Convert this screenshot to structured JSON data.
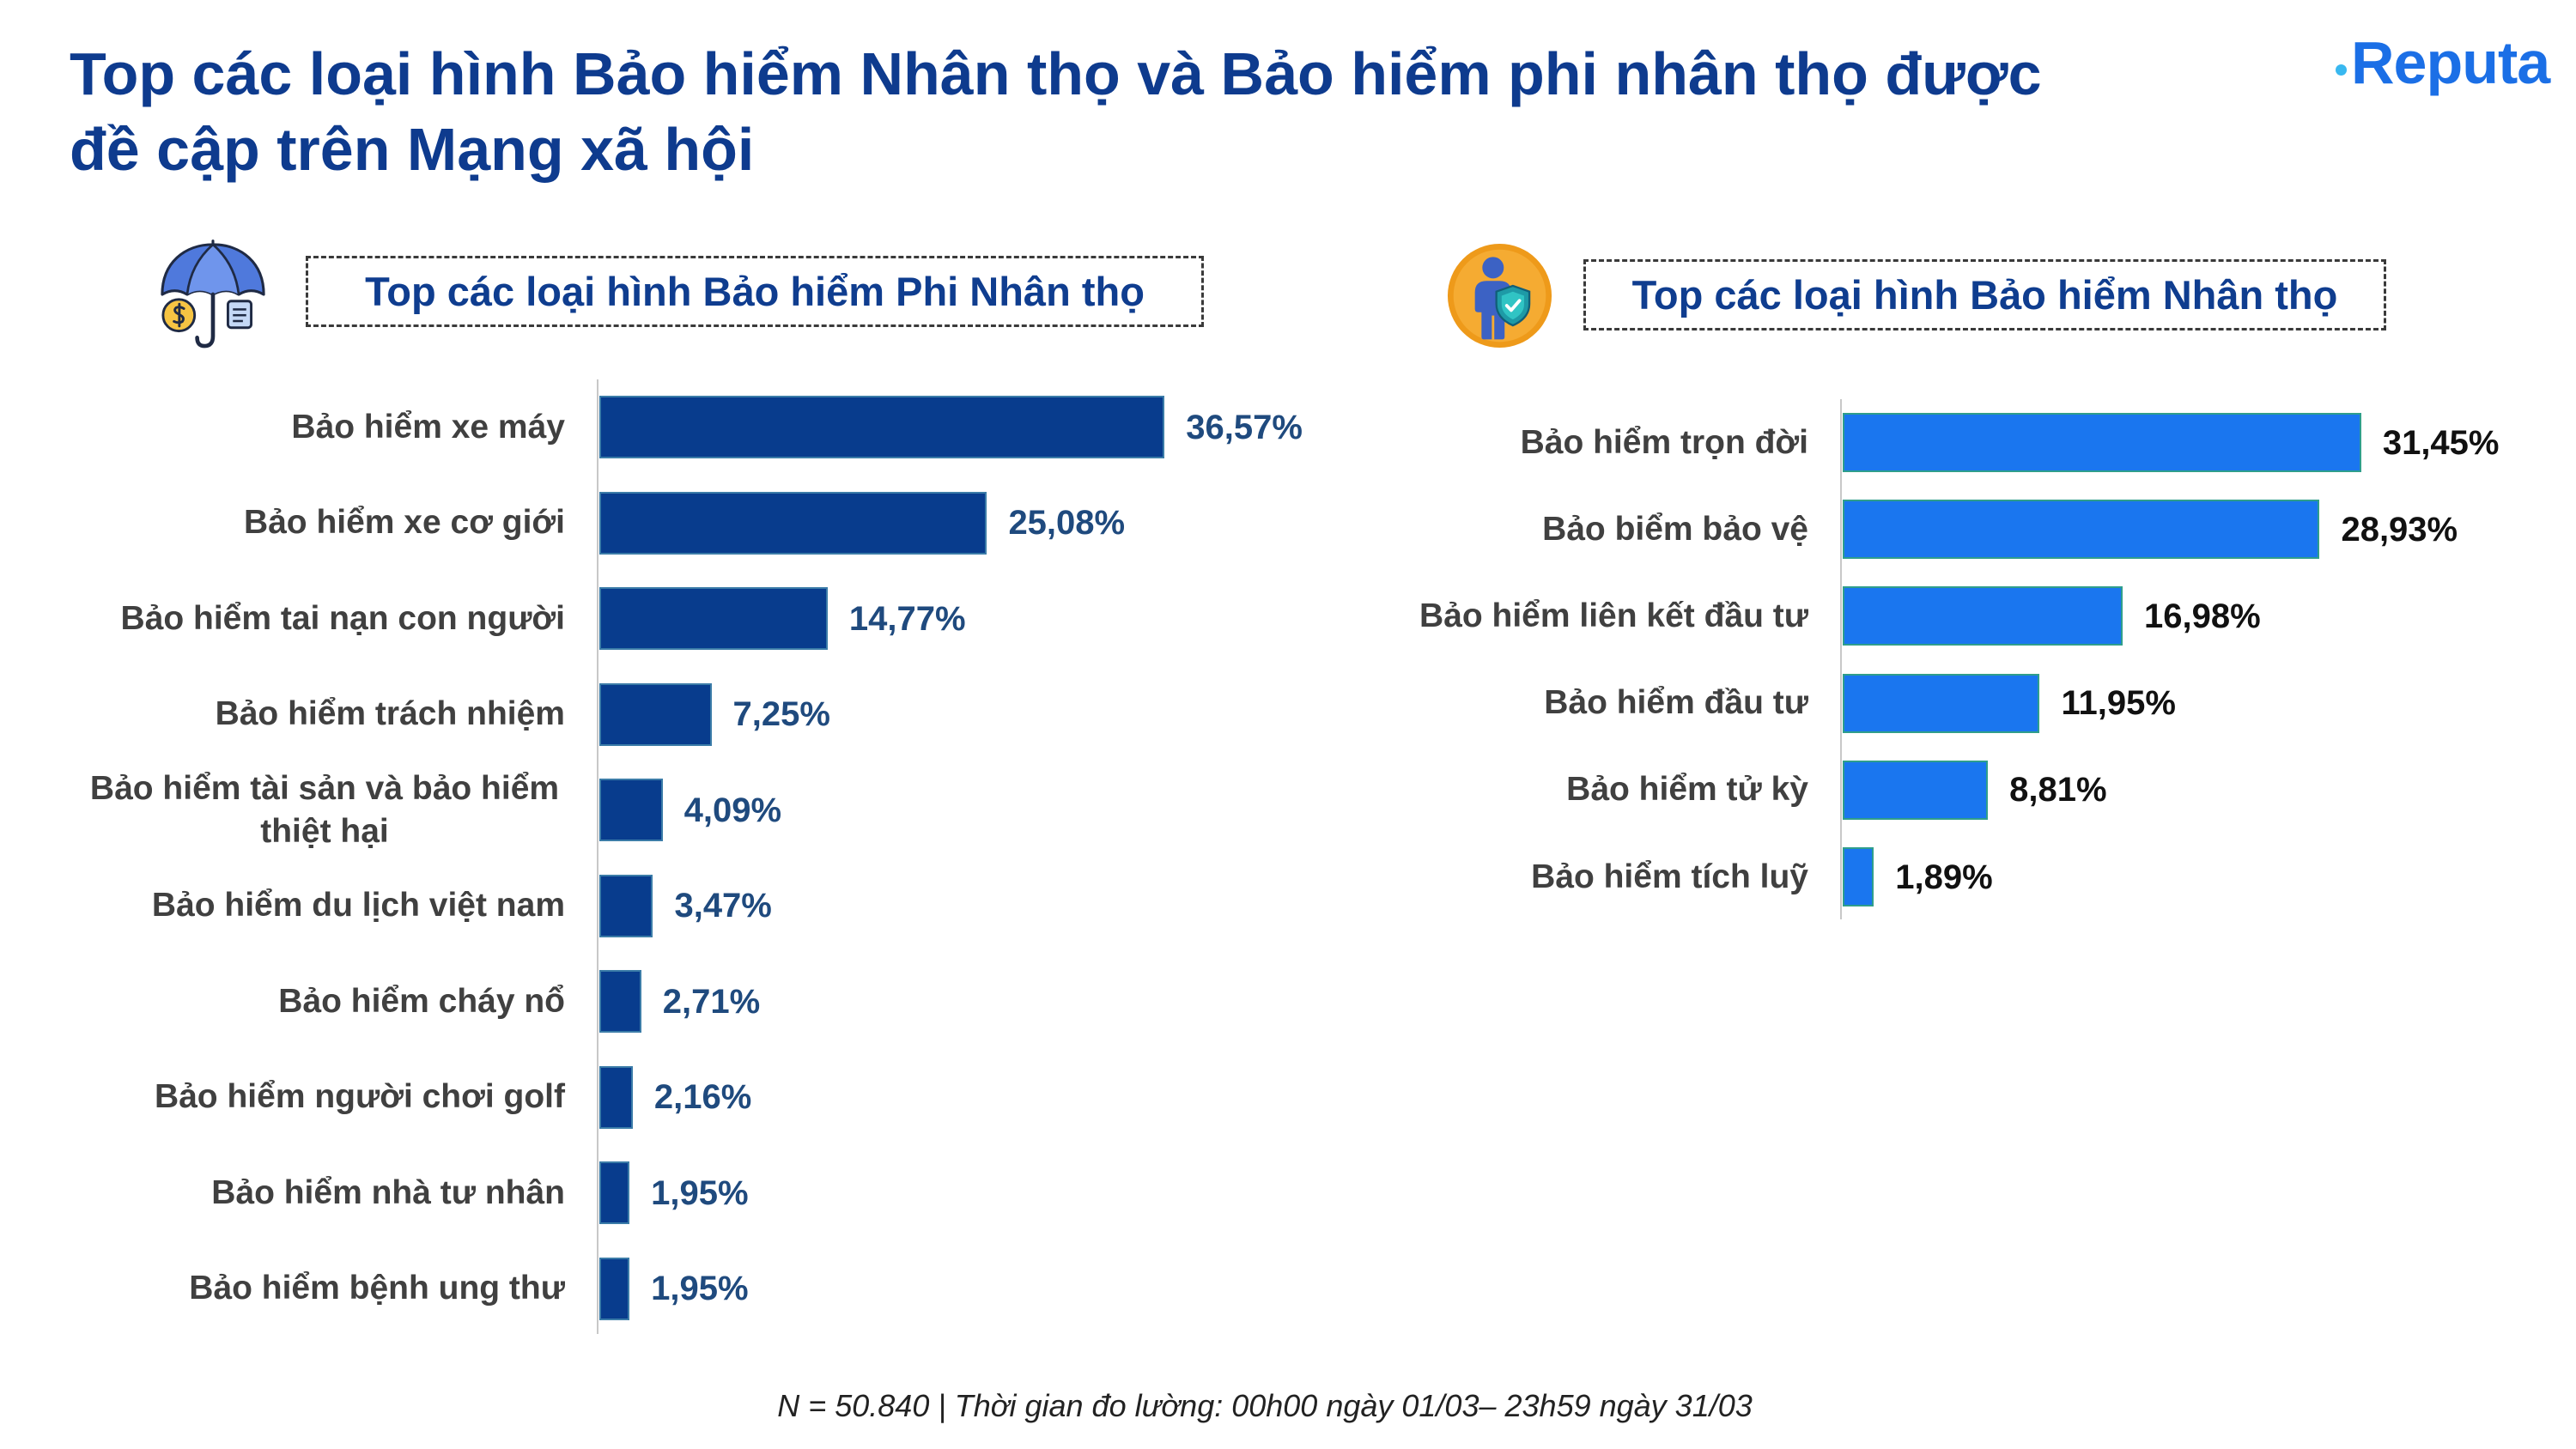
{
  "title": {
    "line1": "Top các loại hình Bảo hiểm Nhân thọ và Bảo hiểm phi nhân thọ được",
    "line2": "đề cập trên Mạng xã hội"
  },
  "logo": {
    "text": "Reputa",
    "color": "#1b6fe6"
  },
  "icons": {
    "left": "umbrella-money-icon",
    "right": "person-shield-icon"
  },
  "chart_data": [
    {
      "type": "bar",
      "orientation": "horizontal",
      "title": "Top các loại hình Bảo hiểm Phi Nhân thọ",
      "categories": [
        "Bảo hiểm xe máy",
        "Bảo hiểm xe cơ giới",
        "Bảo hiểm tai nạn con người",
        "Bảo hiểm trách nhiệm",
        "Bảo hiểm tài sản và bảo hiểm thiệt hại",
        "Bảo hiểm du lịch việt nam",
        "Bảo hiểm cháy nổ",
        "Bảo hiểm người chơi golf",
        "Bảo hiểm nhà tư nhân",
        "Bảo hiểm bệnh ung thư"
      ],
      "values": [
        36.57,
        25.08,
        14.77,
        7.25,
        4.09,
        3.47,
        2.71,
        2.16,
        1.95,
        1.95
      ],
      "value_labels": [
        "36,57%",
        "25,08%",
        "14,77%",
        "7,25%",
        "4,09%",
        "3,47%",
        "2,71%",
        "2,16%",
        "1,95%",
        "1,95%"
      ],
      "grid": false,
      "bar_color": "#083c8d",
      "label_color": "#1f4a7e"
    },
    {
      "type": "bar",
      "orientation": "horizontal",
      "title": "Top các loại hình Bảo hiểm Nhân thọ",
      "categories": [
        "Bảo hiểm trọn đời",
        "Bảo biểm bảo vệ",
        "Bảo hiểm liên kết đầu tư",
        "Bảo hiểm đầu tư",
        "Bảo hiểm tử kỳ",
        "Bảo hiểm tích luỹ"
      ],
      "values": [
        31.45,
        28.93,
        16.98,
        11.95,
        8.81,
        1.89
      ],
      "value_labels": [
        "31,45%",
        "28,93%",
        "16,98%",
        "11,95%",
        "8,81%",
        "1,89%"
      ],
      "grid": false,
      "bar_color": "#1a76ef",
      "label_color": "#111111"
    }
  ],
  "footer": {
    "note": "N = 50.840 | Thời gian đo lường: 00h00 ngày 01/03– 23h59 ngày 31/03"
  }
}
